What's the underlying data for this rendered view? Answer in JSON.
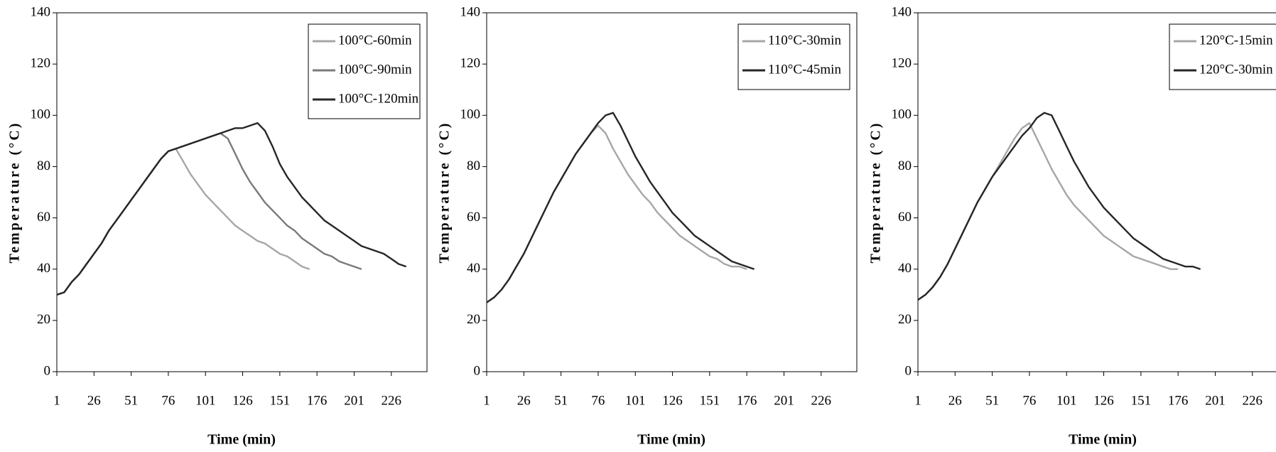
{
  "chart_data": [
    {
      "type": "line",
      "xlabel": "Time (min)",
      "ylabel": "Temperature (°C)",
      "x": [
        1,
        6,
        11,
        16,
        21,
        26,
        31,
        36,
        41,
        46,
        51,
        56,
        61,
        66,
        71,
        76,
        81,
        86,
        91,
        96,
        101,
        106,
        111,
        116,
        121,
        126,
        131,
        136,
        141,
        146,
        151,
        156,
        161,
        166,
        171,
        176,
        181,
        186,
        191,
        196,
        201,
        206,
        211,
        216,
        221,
        226,
        231,
        236
      ],
      "series": [
        {
          "name": "100°C-60min",
          "color": "#a6a6a6",
          "values": [
            30,
            31,
            35,
            38,
            42,
            46,
            50,
            55,
            59,
            63,
            67,
            71,
            75,
            79,
            83,
            86,
            87,
            82,
            77,
            73,
            69,
            66,
            63,
            60,
            57,
            55,
            53,
            51,
            50,
            48,
            46,
            45,
            43,
            41,
            40,
            null,
            null,
            null,
            null,
            null,
            null,
            null,
            null,
            null,
            null,
            null,
            null,
            null
          ]
        },
        {
          "name": "100°C-90min",
          "color": "#7a7a7a",
          "values": [
            30,
            31,
            35,
            38,
            42,
            46,
            50,
            55,
            59,
            63,
            67,
            71,
            75,
            79,
            83,
            86,
            87,
            88,
            89,
            90,
            91,
            92,
            93,
            91,
            85,
            79,
            74,
            70,
            66,
            63,
            60,
            57,
            55,
            52,
            50,
            48,
            46,
            45,
            43,
            42,
            41,
            40,
            null,
            null,
            null,
            null,
            null,
            null
          ]
        },
        {
          "name": "100°C-120min",
          "color": "#262626",
          "values": [
            30,
            31,
            35,
            38,
            42,
            46,
            50,
            55,
            59,
            63,
            67,
            71,
            75,
            79,
            83,
            86,
            87,
            88,
            89,
            90,
            91,
            92,
            93,
            94,
            95,
            95,
            96,
            97,
            94,
            88,
            81,
            76,
            72,
            68,
            65,
            62,
            59,
            57,
            55,
            53,
            51,
            49,
            48,
            47,
            46,
            44,
            42,
            41
          ]
        }
      ],
      "xlim": [
        1,
        250
      ],
      "ylim": [
        0,
        140
      ],
      "xticks": [
        1,
        26,
        51,
        76,
        101,
        126,
        151,
        176,
        201,
        226
      ],
      "yticks": [
        0,
        20,
        40,
        60,
        80,
        100,
        120,
        140
      ],
      "legend": "upper right"
    },
    {
      "type": "line",
      "xlabel": "Time (min)",
      "ylabel": "Temperature (°C)",
      "x": [
        1,
        6,
        11,
        16,
        21,
        26,
        31,
        36,
        41,
        46,
        51,
        56,
        61,
        66,
        71,
        76,
        81,
        86,
        91,
        96,
        101,
        106,
        111,
        116,
        121,
        126,
        131,
        136,
        141,
        146,
        151,
        156,
        161,
        166,
        171,
        176,
        181
      ],
      "series": [
        {
          "name": "110°C-30min",
          "color": "#a6a6a6",
          "values": [
            27,
            29,
            32,
            36,
            41,
            46,
            52,
            58,
            64,
            70,
            75,
            80,
            85,
            89,
            93,
            96,
            93,
            87,
            82,
            77,
            73,
            69,
            66,
            62,
            59,
            56,
            53,
            51,
            49,
            47,
            45,
            44,
            42,
            41,
            41,
            40,
            null
          ]
        },
        {
          "name": "110°C-45min",
          "color": "#262626",
          "values": [
            27,
            29,
            32,
            36,
            41,
            46,
            52,
            58,
            64,
            70,
            75,
            80,
            85,
            89,
            93,
            97,
            100,
            101,
            96,
            90,
            84,
            79,
            74,
            70,
            66,
            62,
            59,
            56,
            53,
            51,
            49,
            47,
            45,
            43,
            42,
            41,
            40
          ]
        }
      ],
      "xlim": [
        1,
        250
      ],
      "ylim": [
        0,
        140
      ],
      "xticks": [
        1,
        26,
        51,
        76,
        101,
        126,
        151,
        176,
        201,
        226
      ],
      "yticks": [
        0,
        20,
        40,
        60,
        80,
        100,
        120,
        140
      ],
      "legend": "upper right"
    },
    {
      "type": "line",
      "xlabel": "Time (min)",
      "ylabel": "Temperature (°C)",
      "x": [
        1,
        6,
        11,
        16,
        21,
        26,
        31,
        36,
        41,
        46,
        51,
        56,
        61,
        66,
        71,
        76,
        81,
        86,
        91,
        96,
        101,
        106,
        111,
        116,
        121,
        126,
        131,
        136,
        141,
        146,
        151,
        156,
        161,
        166,
        171,
        176,
        181,
        186,
        191
      ],
      "series": [
        {
          "name": "120°C-15min",
          "color": "#a6a6a6",
          "values": [
            28,
            30,
            33,
            37,
            42,
            48,
            54,
            60,
            66,
            71,
            76,
            81,
            86,
            91,
            95,
            97,
            91,
            85,
            79,
            74,
            69,
            65,
            62,
            59,
            56,
            53,
            51,
            49,
            47,
            45,
            44,
            43,
            42,
            41,
            40,
            40,
            null,
            null,
            null
          ]
        },
        {
          "name": "120°C-30min",
          "color": "#262626",
          "values": [
            28,
            30,
            33,
            37,
            42,
            48,
            54,
            60,
            66,
            71,
            76,
            80,
            84,
            88,
            92,
            95,
            99,
            101,
            100,
            94,
            88,
            82,
            77,
            72,
            68,
            64,
            61,
            58,
            55,
            52,
            50,
            48,
            46,
            44,
            43,
            42,
            41,
            41,
            40
          ]
        }
      ],
      "xlim": [
        1,
        250
      ],
      "ylim": [
        0,
        140
      ],
      "xticks": [
        1,
        26,
        51,
        76,
        101,
        126,
        151,
        176,
        201,
        226
      ],
      "yticks": [
        0,
        20,
        40,
        60,
        80,
        100,
        120,
        140
      ],
      "legend": "upper right"
    }
  ]
}
